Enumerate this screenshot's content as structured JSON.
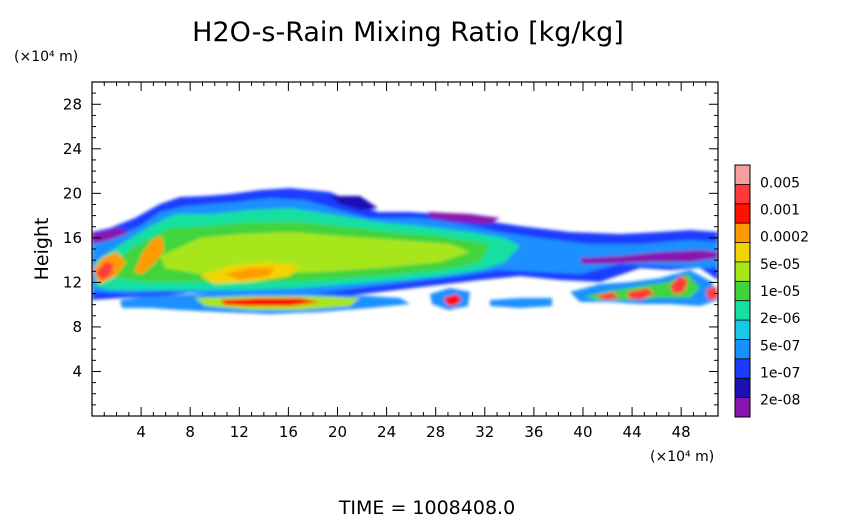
{
  "chart_data": {
    "type": "heatmap",
    "title": "H2O-s-Rain Mixing Ratio [kg/kg]",
    "ylabel": "Height",
    "x_unit": "(×10⁴ m)",
    "y_unit": "(×10⁴ m)",
    "xlim": [
      0,
      51
    ],
    "ylim": [
      0,
      30
    ],
    "x_ticks": [
      "4",
      "8",
      "12",
      "16",
      "20",
      "24",
      "28",
      "32",
      "36",
      "40",
      "44",
      "48"
    ],
    "y_ticks": [
      "4",
      "8",
      "12",
      "16",
      "20",
      "24",
      "28"
    ],
    "colorbar": {
      "labels": [
        "0.005",
        "0.001",
        "0.0002",
        "5e-05",
        "1e-05",
        "2e-06",
        "5e-07",
        "1e-07",
        "2e-08"
      ],
      "colors": [
        "#f4a0a0",
        "#ff3a3a",
        "#ff1000",
        "#ff9a00",
        "#f2d400",
        "#a8e61a",
        "#3fd43c",
        "#14e0a0",
        "#18c8e8",
        "#1a90ff",
        "#1a3cff",
        "#1a10b4",
        "#8a14b0"
      ]
    },
    "grid": false,
    "footer": "TIME  =  1008408.0"
  }
}
